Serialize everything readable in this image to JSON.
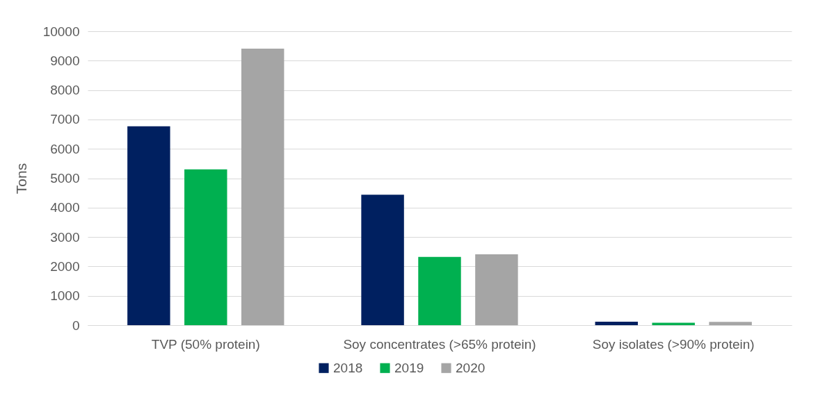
{
  "chart_data": {
    "type": "bar",
    "ylabel": "Tons",
    "categories": [
      "TVP (50% protein)",
      "Soy concentrates (>65% protein)",
      "Soy isolates (>90% protein)"
    ],
    "series": [
      {
        "name": "2018",
        "color": "#002060",
        "values": [
          6770,
          4440,
          120
        ]
      },
      {
        "name": "2019",
        "color": "#00b050",
        "values": [
          5300,
          2320,
          80
        ]
      },
      {
        "name": "2020",
        "color": "#a5a5a5",
        "values": [
          9410,
          2410,
          110
        ]
      }
    ],
    "ylim": [
      0,
      10000
    ],
    "yticks": [
      0,
      1000,
      2000,
      3000,
      4000,
      5000,
      6000,
      7000,
      8000,
      9000,
      10000
    ],
    "grid": "y",
    "legend": "bottom"
  }
}
